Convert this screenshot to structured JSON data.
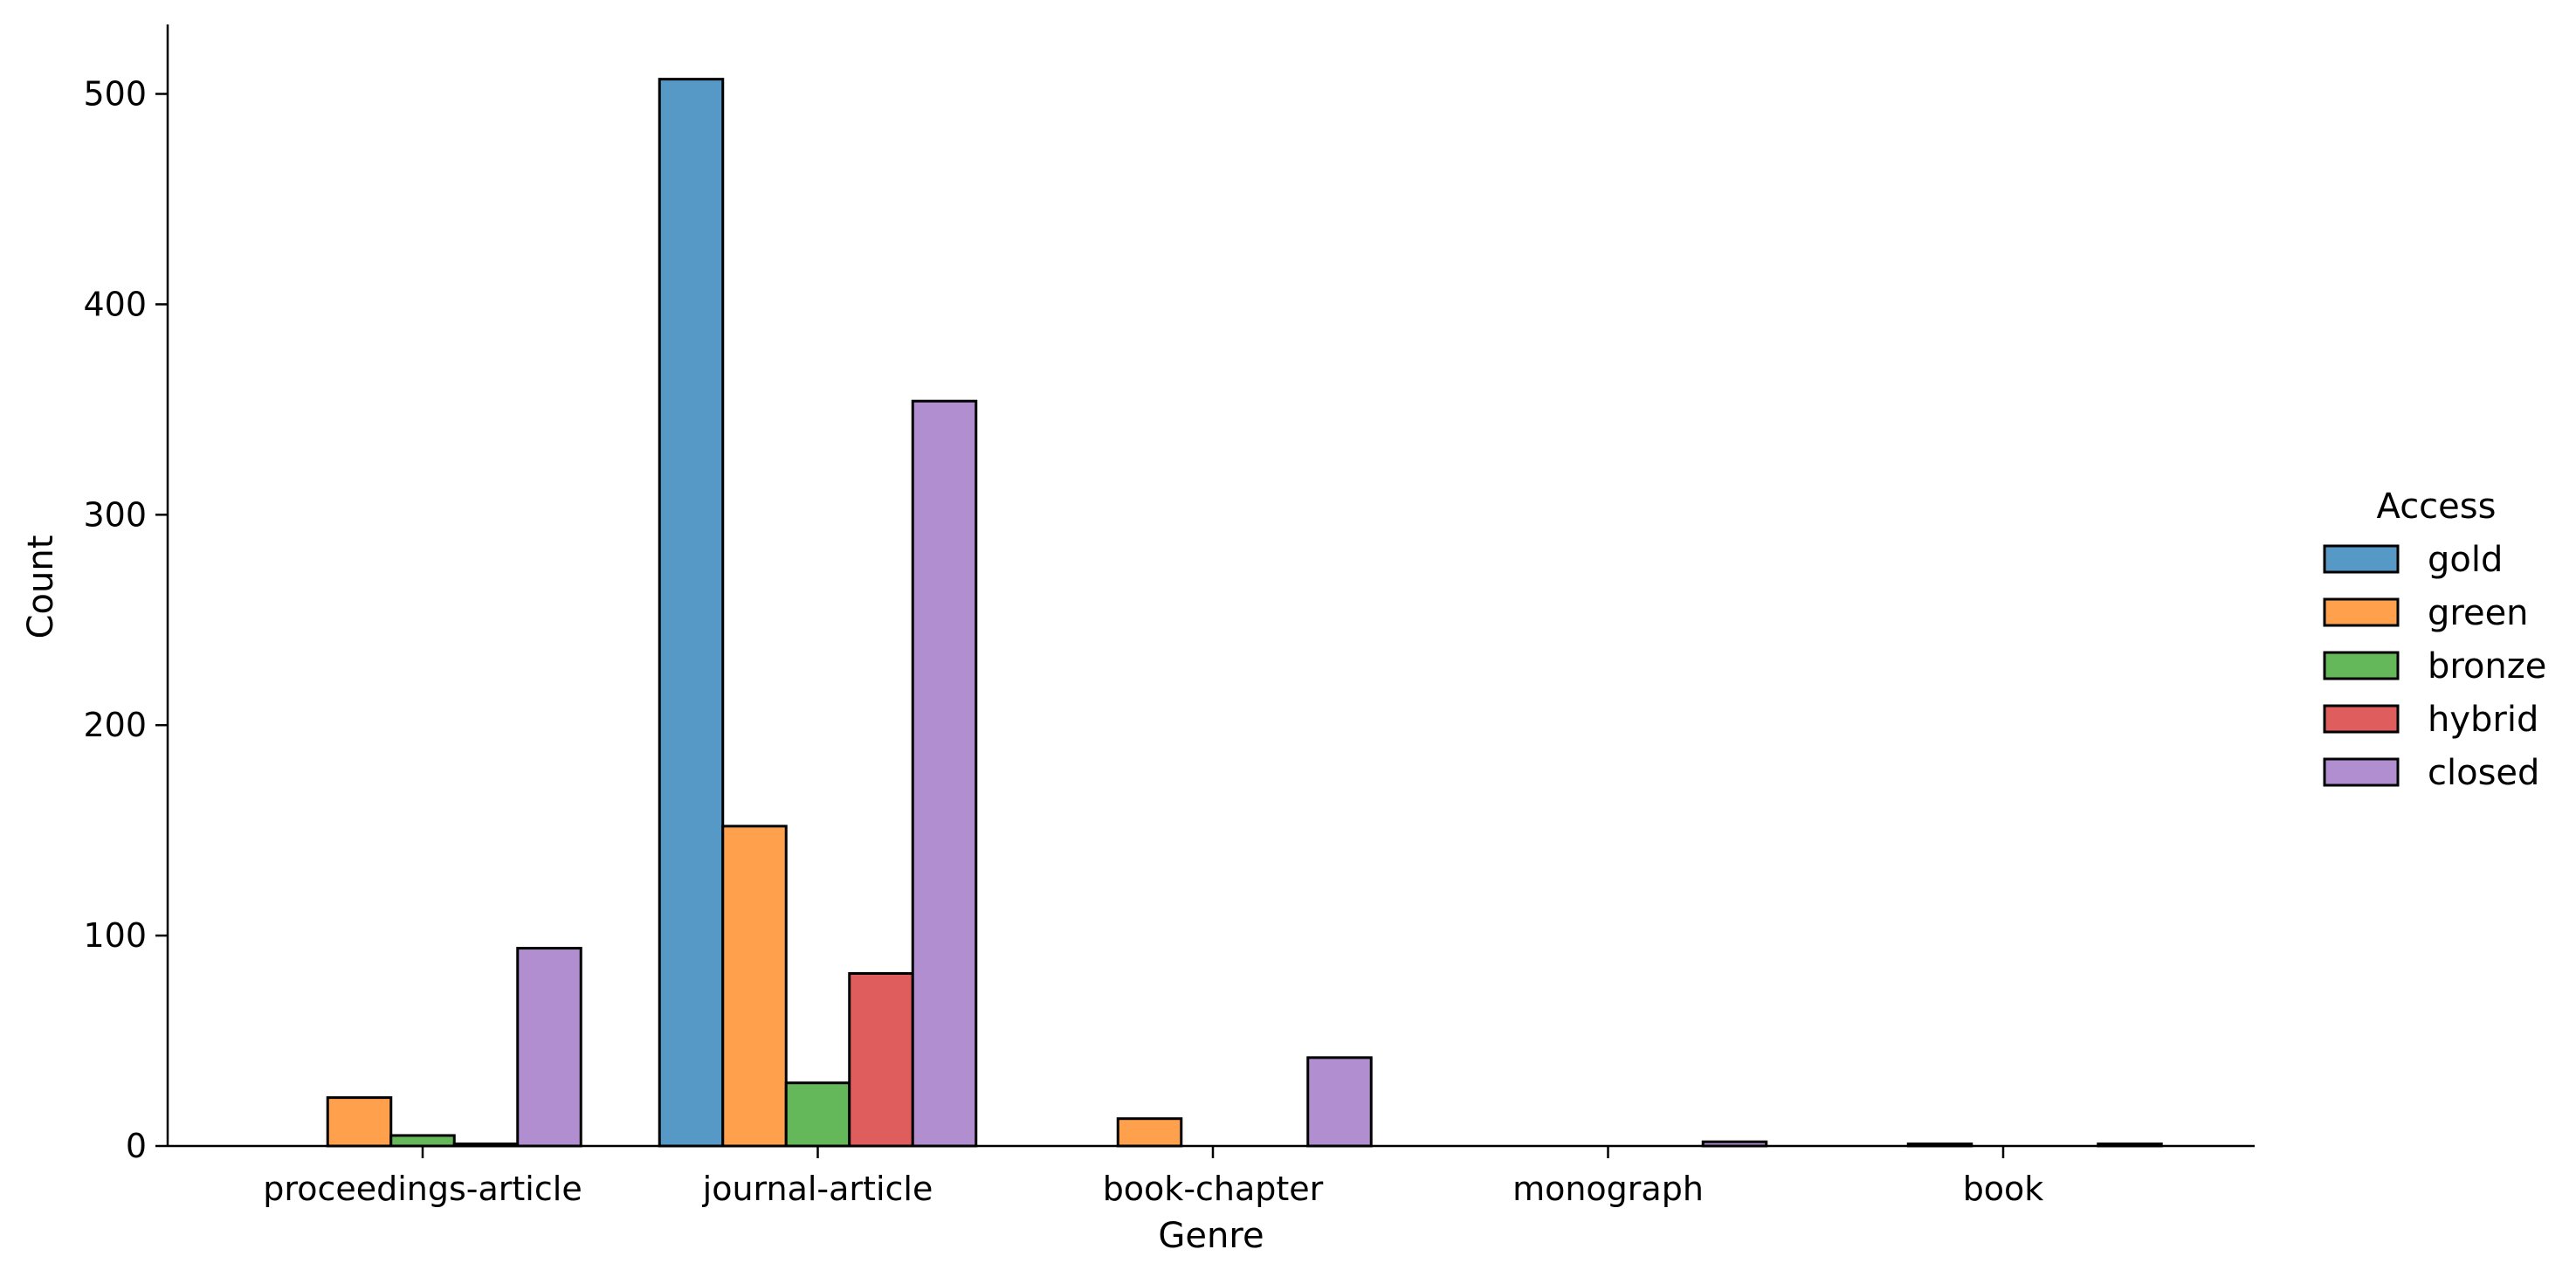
{
  "chart_data": {
    "type": "bar",
    "title": "",
    "xlabel": "Genre",
    "ylabel": "Count",
    "categories": [
      "proceedings-article",
      "journal-article",
      "book-chapter",
      "monograph",
      "book"
    ],
    "series": [
      {
        "name": "gold",
        "color": "#5799c6",
        "values": [
          0,
          507,
          0,
          0,
          0
        ]
      },
      {
        "name": "green",
        "color": "#ffa04d",
        "values": [
          23,
          152,
          13,
          0,
          1
        ]
      },
      {
        "name": "bronze",
        "color": "#64b85a",
        "values": [
          5,
          30,
          0,
          0,
          0
        ]
      },
      {
        "name": "hybrid",
        "color": "#e05d5d",
        "values": [
          1,
          82,
          0,
          0,
          0
        ]
      },
      {
        "name": "closed",
        "color": "#b08ecf",
        "values": [
          94,
          354,
          42,
          2,
          1
        ]
      }
    ],
    "ylim": [
      0,
      533
    ],
    "yticks": [
      0,
      100,
      200,
      300,
      400,
      500
    ],
    "legend": {
      "title": "Access",
      "placement": "right"
    },
    "grid": false
  }
}
